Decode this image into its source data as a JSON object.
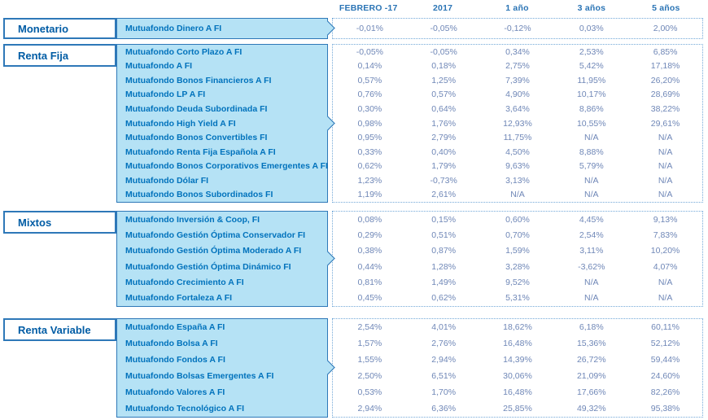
{
  "columns": [
    "FEBRERO -17",
    "2017",
    "1 año",
    "3 años",
    "5 años"
  ],
  "colors": {
    "accent_border": "#2e78b8",
    "category_text": "#005ca5",
    "fund_text": "#0072bc",
    "value_text": "#6f87b7",
    "fund_block_fill": "#b5e2f5",
    "dashed_border": "#74a9d8"
  },
  "sections": [
    {
      "category": "Monetario",
      "funds": [
        {
          "name": "Mutuafondo Dinero A FI",
          "values": [
            "-0,01%",
            "-0,05%",
            "-0,12%",
            "0,03%",
            "2,00%"
          ]
        }
      ]
    },
    {
      "category": "Renta Fija",
      "funds": [
        {
          "name": "Mutuafondo Corto Plazo A FI",
          "values": [
            "-0,05%",
            "-0,05%",
            "0,34%",
            "2,53%",
            "6,85%"
          ]
        },
        {
          "name": "Mutuafondo A FI",
          "values": [
            "0,14%",
            "0,18%",
            "2,75%",
            "5,42%",
            "17,18%"
          ]
        },
        {
          "name": "Mutuafondo Bonos Financieros A FI",
          "values": [
            "0,57%",
            "1,25%",
            "7,39%",
            "11,95%",
            "26,20%"
          ]
        },
        {
          "name": "Mutuafondo LP A FI",
          "values": [
            "0,76%",
            "0,57%",
            "4,90%",
            "10,17%",
            "28,69%"
          ]
        },
        {
          "name": "Mutuafondo Deuda Subordinada FI",
          "values": [
            "0,30%",
            "0,64%",
            "3,64%",
            "8,86%",
            "38,22%"
          ]
        },
        {
          "name": "Mutuafondo High Yield A FI",
          "values": [
            "0,98%",
            "1,76%",
            "12,93%",
            "10,55%",
            "29,61%"
          ]
        },
        {
          "name": "Mutuafondo Bonos Convertibles FI",
          "values": [
            "0,95%",
            "2,79%",
            "11,75%",
            "N/A",
            "N/A"
          ]
        },
        {
          "name": "Mutuafondo Renta Fija Española A FI",
          "values": [
            "0,33%",
            "0,40%",
            "4,50%",
            "8,88%",
            "N/A"
          ]
        },
        {
          "name": "Mutuafondo Bonos Corporativos Emergentes A FI",
          "values": [
            "0,62%",
            "1,79%",
            "9,63%",
            "5,79%",
            "N/A"
          ]
        },
        {
          "name": "Mutuafondo Dólar FI",
          "values": [
            "1,23%",
            "-0,73%",
            "3,13%",
            "N/A",
            "N/A"
          ]
        },
        {
          "name": "Mutuafondo Bonos Subordinados FI",
          "values": [
            "1,19%",
            "2,61%",
            "N/A",
            "N/A",
            "N/A"
          ]
        }
      ]
    },
    {
      "category": "Mixtos",
      "funds": [
        {
          "name": "Mutuafondo Inversión & Coop, FI",
          "values": [
            "0,08%",
            "0,15%",
            "0,60%",
            "4,45%",
            "9,13%"
          ]
        },
        {
          "name": "Mutuafondo Gestión Óptima Conservador FI",
          "values": [
            "0,29%",
            "0,51%",
            "0,70%",
            "2,54%",
            "7,83%"
          ]
        },
        {
          "name": "Mutuafondo Gestión Óptima Moderado A FI",
          "values": [
            "0,38%",
            "0,87%",
            "1,59%",
            "3,11%",
            "10,20%"
          ]
        },
        {
          "name": "Mutuafondo Gestión Óptima Dinámico FI",
          "values": [
            "0,44%",
            "1,28%",
            "3,28%",
            "-3,62%",
            "4,07%"
          ]
        },
        {
          "name": "Mutuafondo Crecimiento A FI",
          "values": [
            "0,81%",
            "1,49%",
            "9,52%",
            "N/A",
            "N/A"
          ]
        },
        {
          "name": "Mutuafondo Fortaleza A FI",
          "values": [
            "0,45%",
            "0,62%",
            "5,31%",
            "N/A",
            "N/A"
          ]
        }
      ]
    },
    {
      "category": "Renta Variable",
      "funds": [
        {
          "name": "Mutuafondo España A FI",
          "values": [
            "2,54%",
            "4,01%",
            "18,62%",
            "6,18%",
            "60,11%"
          ]
        },
        {
          "name": "Mutuafondo Bolsa A FI",
          "values": [
            "1,57%",
            "2,76%",
            "16,48%",
            "15,36%",
            "52,12%"
          ]
        },
        {
          "name": "Mutuafondo Fondos A FI",
          "values": [
            "1,55%",
            "2,94%",
            "14,39%",
            "26,72%",
            "59,44%"
          ]
        },
        {
          "name": "Mutuafondo Bolsas Emergentes A FI",
          "values": [
            "2,50%",
            "6,51%",
            "30,06%",
            "21,09%",
            "24,60%"
          ]
        },
        {
          "name": "Mutuafondo Valores A FI",
          "values": [
            "0,53%",
            "1,70%",
            "16,48%",
            "17,66%",
            "82,26%"
          ]
        },
        {
          "name": "Mutuafondo Tecnológico A FI",
          "values": [
            "2,94%",
            "6,36%",
            "25,85%",
            "49,32%",
            "95,38%"
          ]
        }
      ]
    }
  ]
}
